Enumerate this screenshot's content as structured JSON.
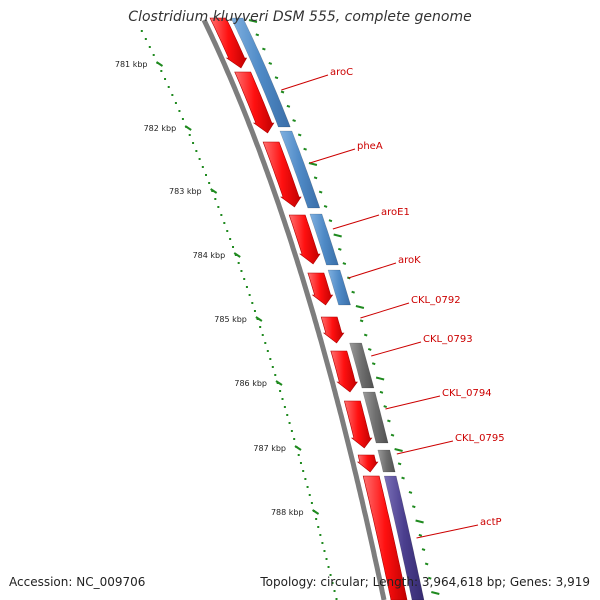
{
  "title": "Clostridium kluyveri DSM 555, complete genome",
  "accession": "Accession: NC_009706",
  "summary": "Topology: circular; Length: 3,964,618 bp; Genes: 3,919",
  "colors": {
    "backbone": "#7d7d7d",
    "cds_strand": "#ff1a1a",
    "cog_blue": "#4f8ac6",
    "cog_gray": "#6e6e6e",
    "cog_purple": "#4b3f8e",
    "ticks": "#1f8a1f",
    "labels": "#cc0000"
  },
  "scale": {
    "unit": "kbp",
    "marks": [
      {
        "label": "781 kbp"
      },
      {
        "label": "782 kbp"
      },
      {
        "label": "783 kbp"
      },
      {
        "label": "784 kbp"
      },
      {
        "label": "785 kbp"
      },
      {
        "label": "786 kbp"
      },
      {
        "label": "787 kbp"
      },
      {
        "label": "788 kbp"
      }
    ]
  },
  "genes": [
    {
      "name": "aroC",
      "cog": "blue"
    },
    {
      "name": "pheA",
      "cog": "blue"
    },
    {
      "name": "aroE1",
      "cog": "blue"
    },
    {
      "name": "aroK",
      "cog": "blue"
    },
    {
      "name": "CKL_0792",
      "cog": "none"
    },
    {
      "name": "CKL_0793",
      "cog": "gray"
    },
    {
      "name": "CKL_0794",
      "cog": "gray"
    },
    {
      "name": "CKL_0795",
      "cog": "gray"
    },
    {
      "name": "actP",
      "cog": "purple"
    }
  ]
}
